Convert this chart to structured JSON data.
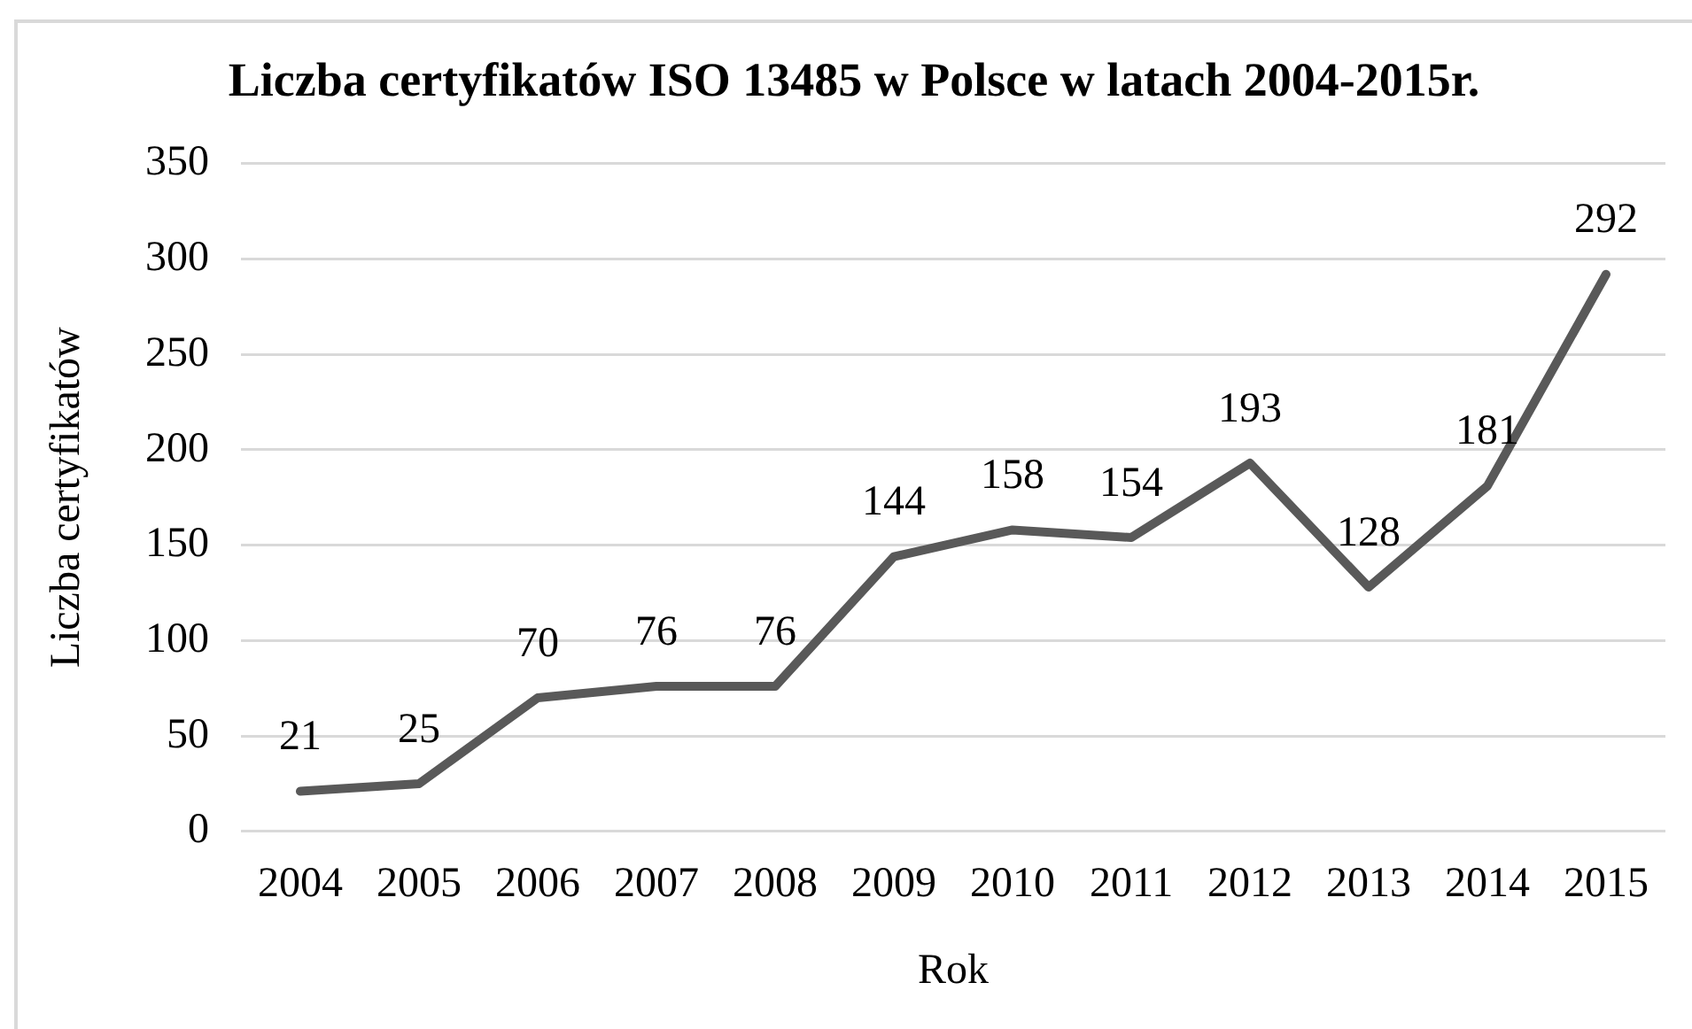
{
  "chart_data": {
    "type": "line",
    "title": "Liczba certyfikatów ISO 13485 w Polsce w latach 2004-2015r.",
    "xlabel": "Rok",
    "ylabel": "Liczba certyfikatów",
    "categories": [
      "2004",
      "2005",
      "2006",
      "2007",
      "2008",
      "2009",
      "2010",
      "2011",
      "2012",
      "2013",
      "2014",
      "2015"
    ],
    "series": [
      {
        "color": "#595959",
        "values": [
          21,
          25,
          70,
          76,
          76,
          144,
          158,
          154,
          193,
          128,
          181,
          292
        ]
      }
    ],
    "ylim": [
      0,
      350
    ],
    "yticks": [
      0,
      50,
      100,
      150,
      200,
      250,
      300,
      350
    ],
    "grid": "y",
    "data_labels": true
  }
}
